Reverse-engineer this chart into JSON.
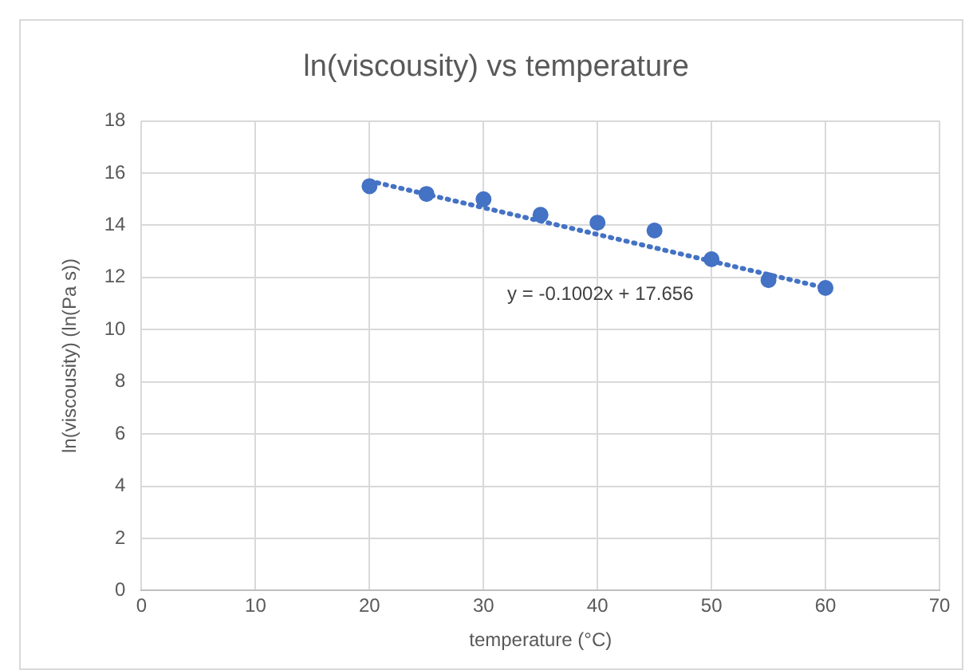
{
  "chart_data": {
    "type": "scatter",
    "title": "ln(viscousity) vs temperature",
    "xlabel": "temperature (°C)",
    "ylabel": "ln(viscousity) (ln(Pa s))",
    "xlim": [
      0,
      70
    ],
    "xticks": [
      0,
      10,
      20,
      30,
      40,
      50,
      60,
      70
    ],
    "ylim": [
      0,
      18
    ],
    "yticks": [
      0,
      2,
      4,
      6,
      8,
      10,
      12,
      14,
      16,
      18
    ],
    "grid": true,
    "legend": false,
    "marker": "circle",
    "series": [
      {
        "type": "scatter",
        "color": "#4472c4",
        "x": [
          20,
          25,
          30,
          35,
          40,
          45,
          50,
          55,
          60
        ],
        "values": [
          15.5,
          15.2,
          15.0,
          14.4,
          14.1,
          13.8,
          12.7,
          11.9,
          11.6
        ]
      },
      {
        "type": "line",
        "color": "#4472c4",
        "line_style": "dotted",
        "marker": "none",
        "x": [
          20,
          60
        ],
        "values": [
          15.7,
          11.6
        ]
      }
    ],
    "annotations": [
      "y = -0.1002x + 17.656"
    ]
  }
}
